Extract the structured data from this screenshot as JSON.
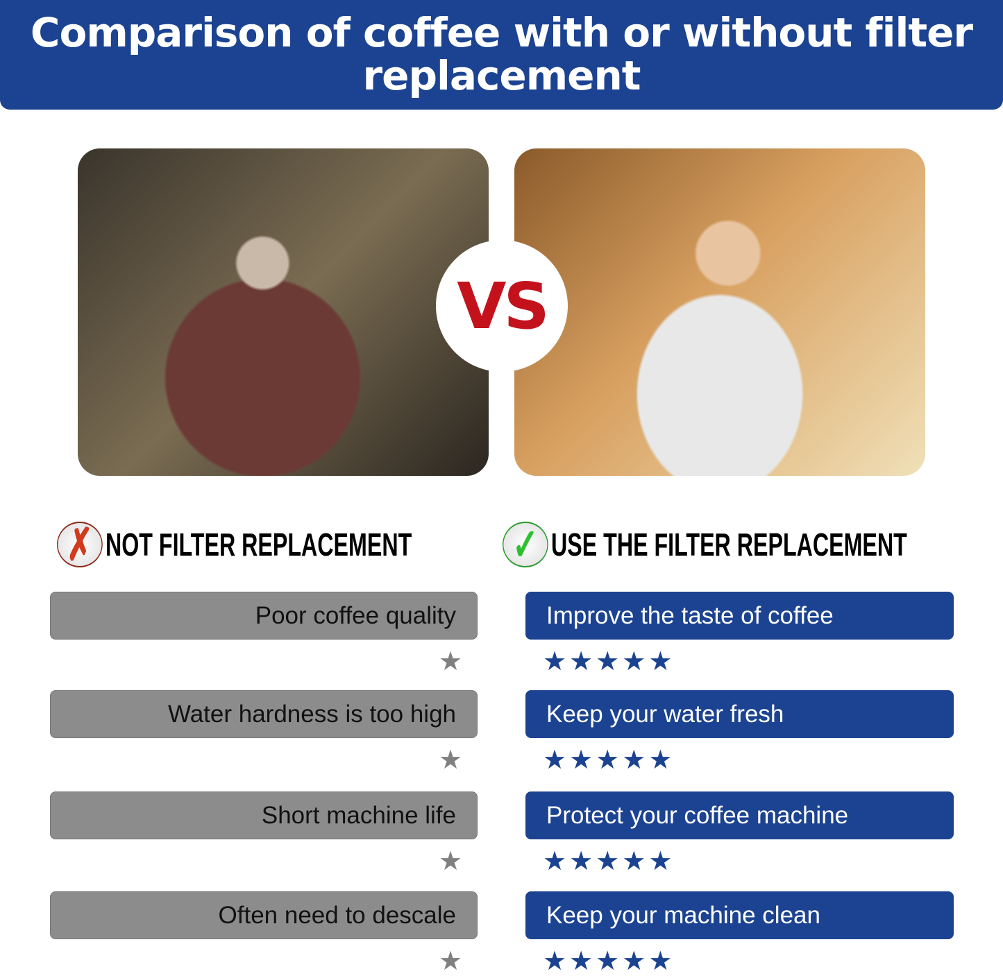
{
  "title": "Comparison of coffee with or without filter replacement",
  "vs": "VS",
  "left": {
    "heading": "NOT FILTER REPLACEMENT",
    "icon": "x-mark-icon",
    "color": "#8c8c8c",
    "items": [
      {
        "label": "Poor coffee quality",
        "rating": 1
      },
      {
        "label": "Water hardness is too high",
        "rating": 1
      },
      {
        "label": "Short machine life",
        "rating": 1
      },
      {
        "label": "Often need to descale",
        "rating": 1
      }
    ]
  },
  "right": {
    "heading": "USE THE FILTER REPLACEMENT",
    "icon": "check-mark-icon",
    "color": "#1c4391",
    "items": [
      {
        "label": "Improve the taste of coffee",
        "rating": 5
      },
      {
        "label": "Keep your water fresh",
        "rating": 5
      },
      {
        "label": "Protect your coffee machine",
        "rating": 5
      },
      {
        "label": "Keep your machine clean",
        "rating": 5
      }
    ]
  }
}
